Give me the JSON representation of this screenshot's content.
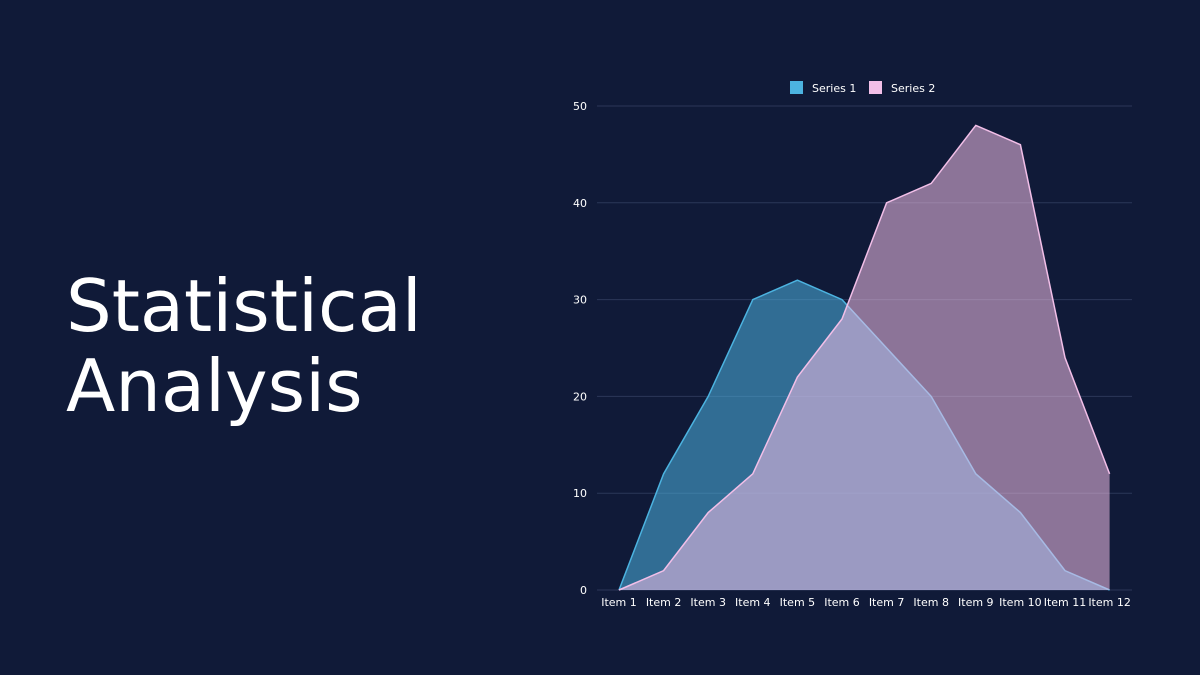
{
  "title": {
    "line1": "Statistical",
    "line2": "Analysis"
  },
  "chart_data": {
    "type": "area",
    "categories": [
      "Item 1",
      "Item 2",
      "Item 3",
      "Item 4",
      "Item 5",
      "Item 6",
      "Item 7",
      "Item 8",
      "Item 9",
      "Item 10",
      "Item 11",
      "Item 12"
    ],
    "series": [
      {
        "name": "Series 1",
        "values": [
          0,
          12,
          20,
          30,
          32,
          30,
          25,
          20,
          12,
          8,
          2,
          0
        ],
        "color": "#4cb3e0"
      },
      {
        "name": "Series 2",
        "values": [
          0,
          2,
          8,
          12,
          22,
          28,
          40,
          42,
          48,
          46,
          24,
          12
        ],
        "color": "#f2bfe8"
      }
    ],
    "ylim": [
      0,
      50
    ],
    "yticks": [
      "0",
      "10",
      "20",
      "30",
      "40",
      "50"
    ],
    "grid": true,
    "legend": "top"
  },
  "colors": {
    "background": "#101a38",
    "grid": "#2b3758",
    "text": "#ffffff"
  }
}
